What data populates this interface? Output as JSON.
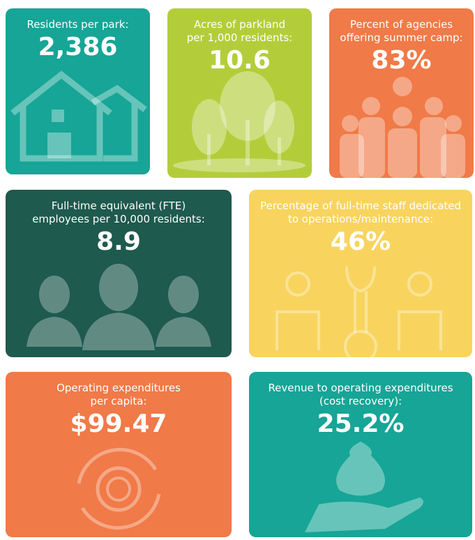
{
  "tiles": [
    {
      "label_lines": [
        "Residents per park:"
      ],
      "value": "2,386"
    },
    {
      "label_lines": [
        "Acres of parkland",
        "per 1,000 residents:"
      ],
      "value": "10.6"
    },
    {
      "label_lines": [
        "Percent of agencies",
        "offering summer camp:"
      ],
      "value": "83%"
    },
    {
      "label_lines": [
        "Full-time equivalent (FTE)",
        "employees per 10,000 residents:"
      ],
      "value": "8.9"
    },
    {
      "label_lines": [
        "Percentage of full-time staff dedicated",
        "to operations/maintenance:"
      ],
      "value": "46%"
    },
    {
      "label_lines": [
        "Operating expenditures",
        "per capita:"
      ],
      "value": "$99.47"
    },
    {
      "label_lines": [
        "Revenue to operating expenditures",
        "(cost recovery):"
      ],
      "value": "25.2%"
    }
  ]
}
